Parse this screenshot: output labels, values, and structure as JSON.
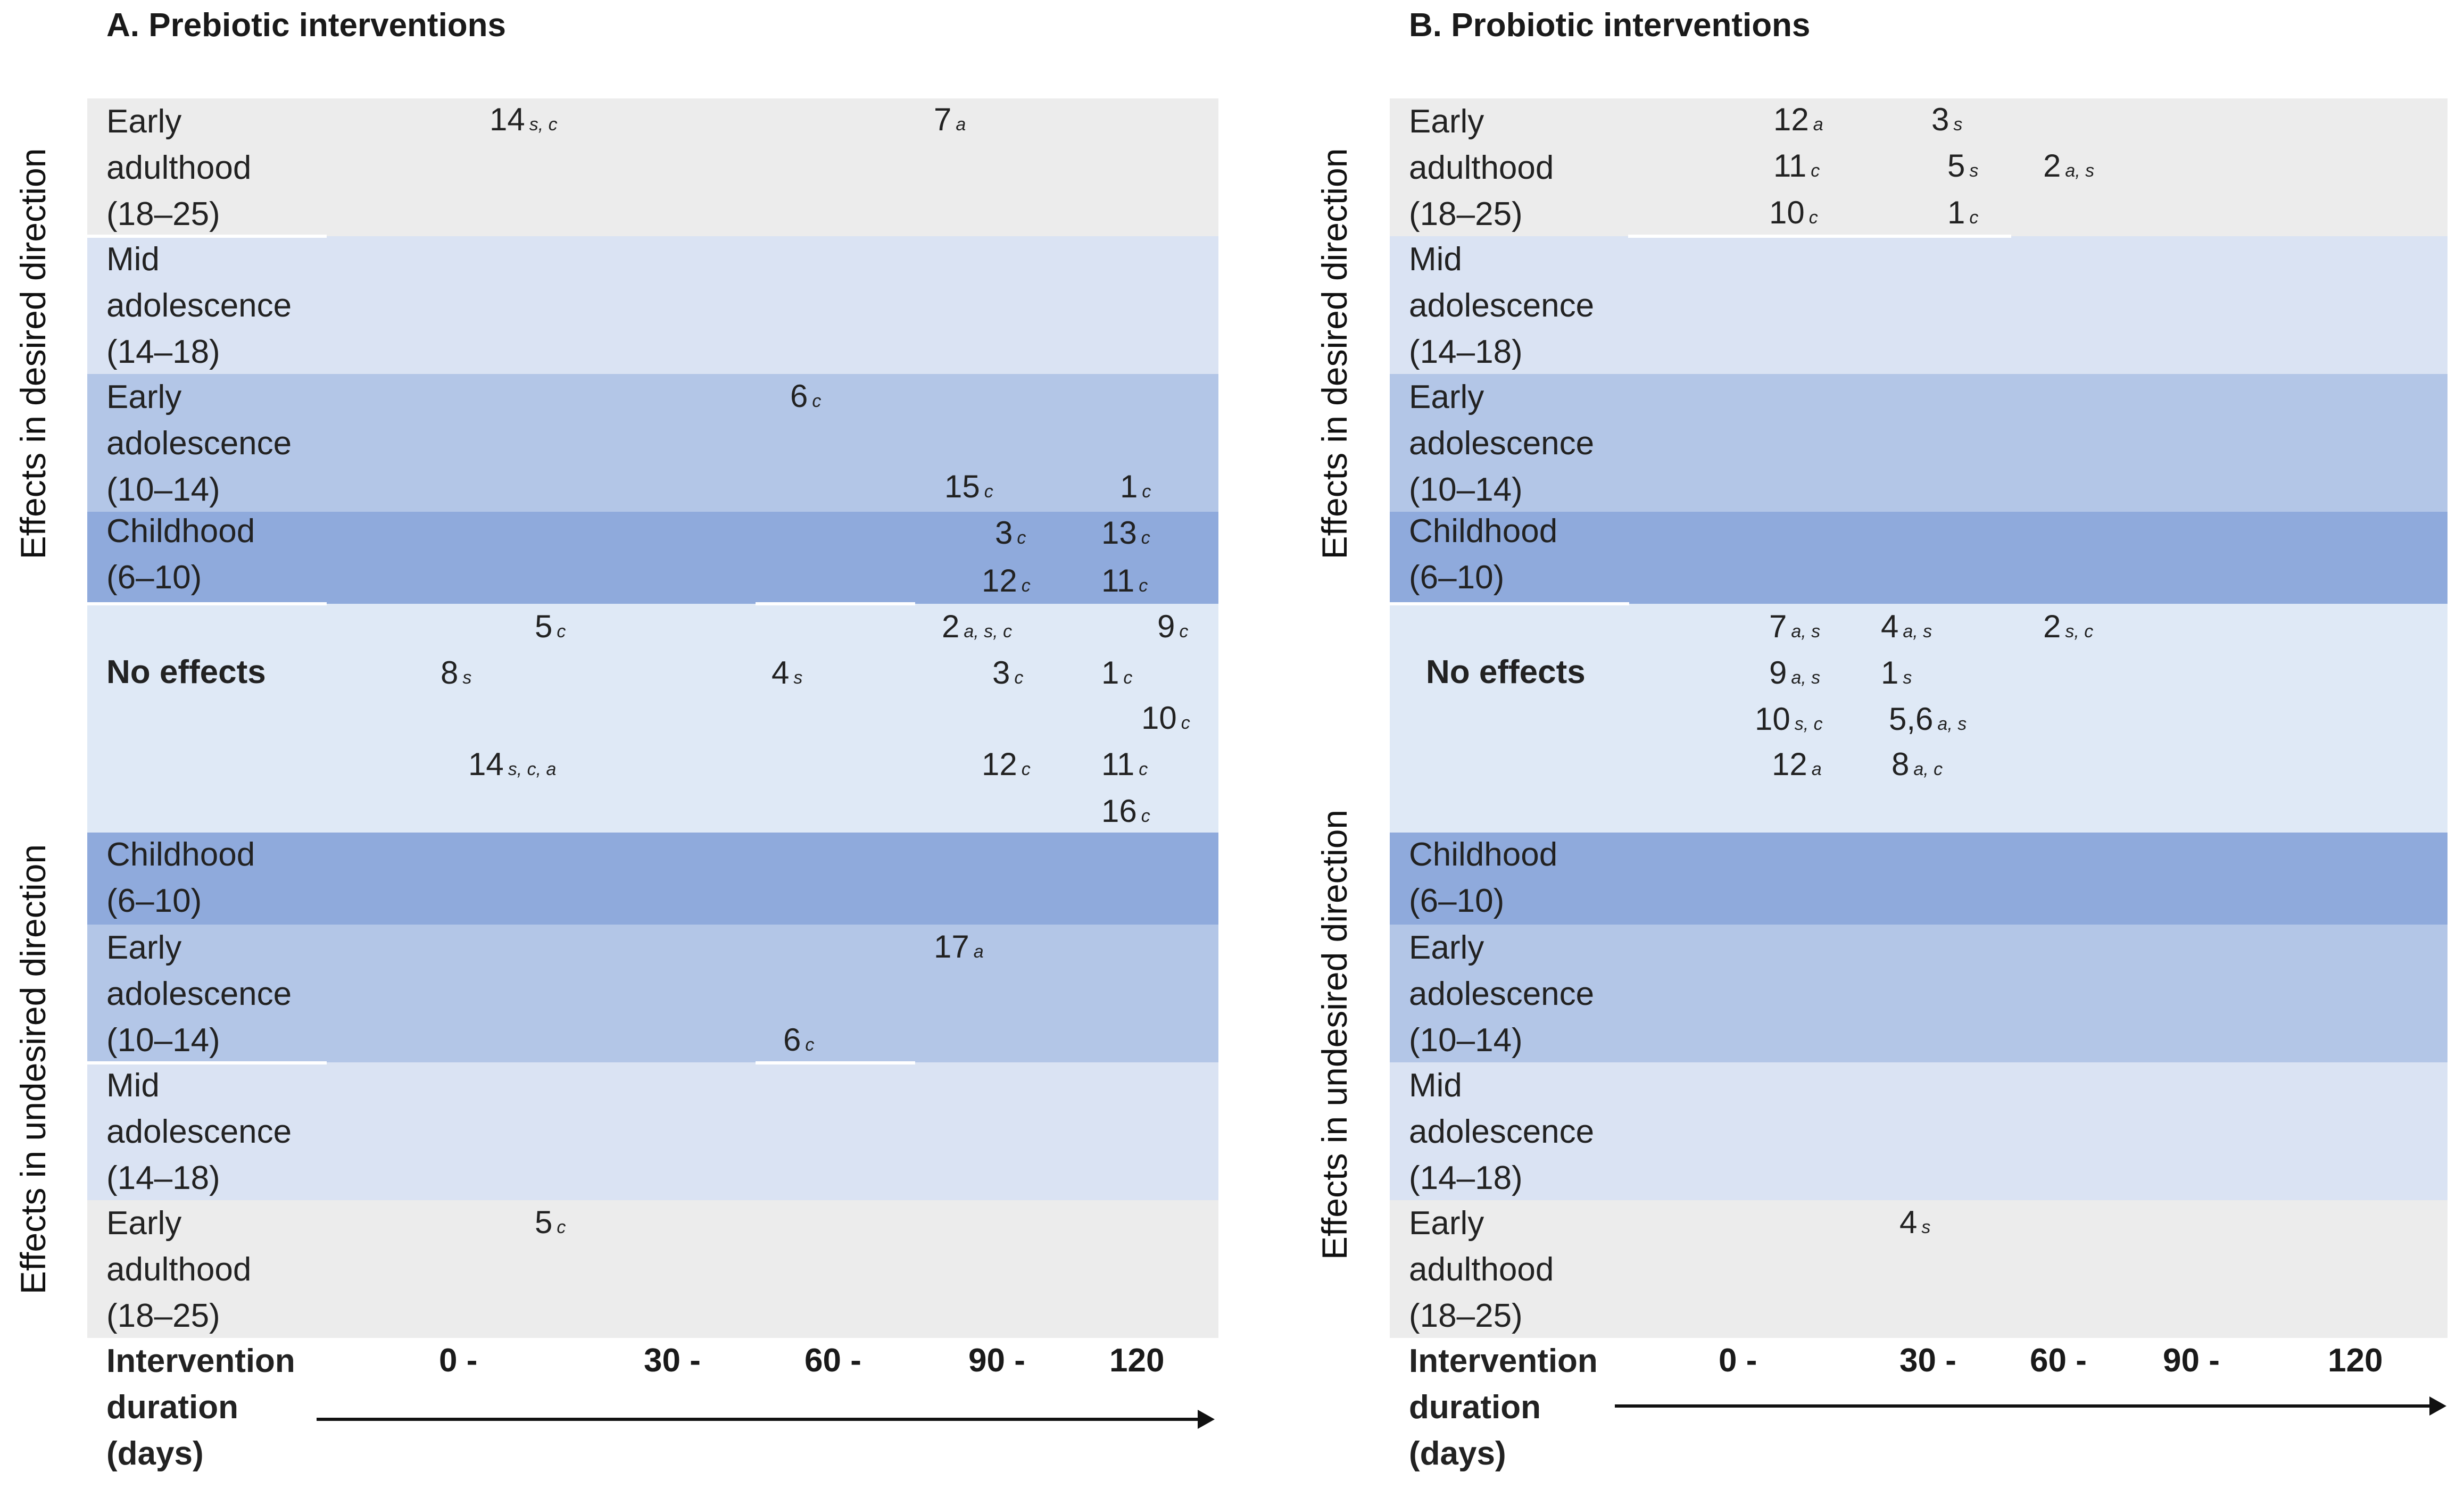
{
  "panelA": {
    "title": "A. Prebiotic interventions",
    "side_desired": "Effects in desired direction",
    "side_undesired": "Effects in undesired direction",
    "bands": [
      {
        "lines": [
          "Early",
          "adulthood",
          "(18–25)"
        ]
      },
      {
        "lines": [
          "Mid",
          "adolescence",
          "(14–18)"
        ]
      },
      {
        "lines": [
          "Early",
          "adolescence",
          "(10–14)"
        ]
      },
      {
        "lines": [
          "Childhood",
          "(6–10)"
        ]
      },
      {
        "lines": [
          "No effects"
        ]
      },
      {
        "lines": [
          "Childhood",
          "(6–10)"
        ]
      },
      {
        "lines": [
          "Early",
          "adolescence",
          "(10–14)"
        ]
      },
      {
        "lines": [
          "Mid",
          "adolescence",
          "(14–18)"
        ]
      },
      {
        "lines": [
          "Early",
          "adulthood",
          "(18–25)"
        ]
      }
    ],
    "axis": {
      "label": [
        "Intervention",
        "duration",
        "(days)"
      ],
      "ticks": [
        "0 -",
        "30 -",
        "60 -",
        "90 -",
        "120"
      ]
    },
    "points": [
      {
        "num": "14",
        "sub": "s, c"
      },
      {
        "num": "7",
        "sub": "a"
      },
      {
        "num": "6",
        "sub": "c"
      },
      {
        "num": "15",
        "sub": "c"
      },
      {
        "num": "1",
        "sub": "c"
      },
      {
        "num": "3",
        "sub": "c"
      },
      {
        "num": "13",
        "sub": "c"
      },
      {
        "num": "12",
        "sub": "c"
      },
      {
        "num": "11",
        "sub": "c"
      },
      {
        "num": "5",
        "sub": "c"
      },
      {
        "num": "2",
        "sub": "a, s, c"
      },
      {
        "num": "9",
        "sub": "c"
      },
      {
        "num": "8",
        "sub": "s"
      },
      {
        "num": "4",
        "sub": "s"
      },
      {
        "num": "3",
        "sub": "c"
      },
      {
        "num": "1",
        "sub": "c"
      },
      {
        "num": "10",
        "sub": "c"
      },
      {
        "num": "14",
        "sub": "s, c, a"
      },
      {
        "num": "12",
        "sub": "c"
      },
      {
        "num": "11",
        "sub": "c"
      },
      {
        "num": "16",
        "sub": "c"
      },
      {
        "num": "17",
        "sub": "a"
      },
      {
        "num": "6",
        "sub": "c"
      },
      {
        "num": "5",
        "sub": "c"
      }
    ]
  },
  "panelB": {
    "title": "B. Probiotic interventions",
    "side_desired": "Effects in desired direction",
    "side_undesired": "Effects in undesired direction",
    "bands": [
      {
        "lines": [
          "Early",
          "adulthood",
          "(18–25)"
        ]
      },
      {
        "lines": [
          "Mid",
          "adolescence",
          "(14–18)"
        ]
      },
      {
        "lines": [
          "Early",
          "adolescence",
          "(10–14)"
        ]
      },
      {
        "lines": [
          "Childhood",
          "(6–10)"
        ]
      },
      {
        "lines": [
          "No effects"
        ]
      },
      {
        "lines": [
          "Childhood",
          "(6–10)"
        ]
      },
      {
        "lines": [
          "Early",
          "adolescence",
          "(10–14)"
        ]
      },
      {
        "lines": [
          "Mid",
          "adolescence",
          "(14–18)"
        ]
      },
      {
        "lines": [
          "Early",
          "adulthood",
          "(18–25)"
        ]
      }
    ],
    "axis": {
      "label": [
        "Intervention",
        "duration",
        "(days)"
      ],
      "ticks": [
        "0 -",
        "30 -",
        "60 -",
        "90 -",
        "120"
      ]
    },
    "points": [
      {
        "num": "12",
        "sub": "a"
      },
      {
        "num": "3",
        "sub": "s"
      },
      {
        "num": "11",
        "sub": "c"
      },
      {
        "num": "5",
        "sub": "s"
      },
      {
        "num": "2",
        "sub": "a, s"
      },
      {
        "num": "10",
        "sub": "c"
      },
      {
        "num": "1",
        "sub": "c"
      },
      {
        "num": "7",
        "sub": "a, s"
      },
      {
        "num": "4",
        "sub": "a, s"
      },
      {
        "num": "2",
        "sub": "s, c"
      },
      {
        "num": "9",
        "sub": "a, s"
      },
      {
        "num": "1",
        "sub": "s"
      },
      {
        "num": "10",
        "sub": "s, c"
      },
      {
        "num": "5,6",
        "sub": "a, s"
      },
      {
        "num": "12",
        "sub": "a"
      },
      {
        "num": "8",
        "sub": "a, c"
      },
      {
        "num": "4",
        "sub": "s"
      }
    ]
  }
}
